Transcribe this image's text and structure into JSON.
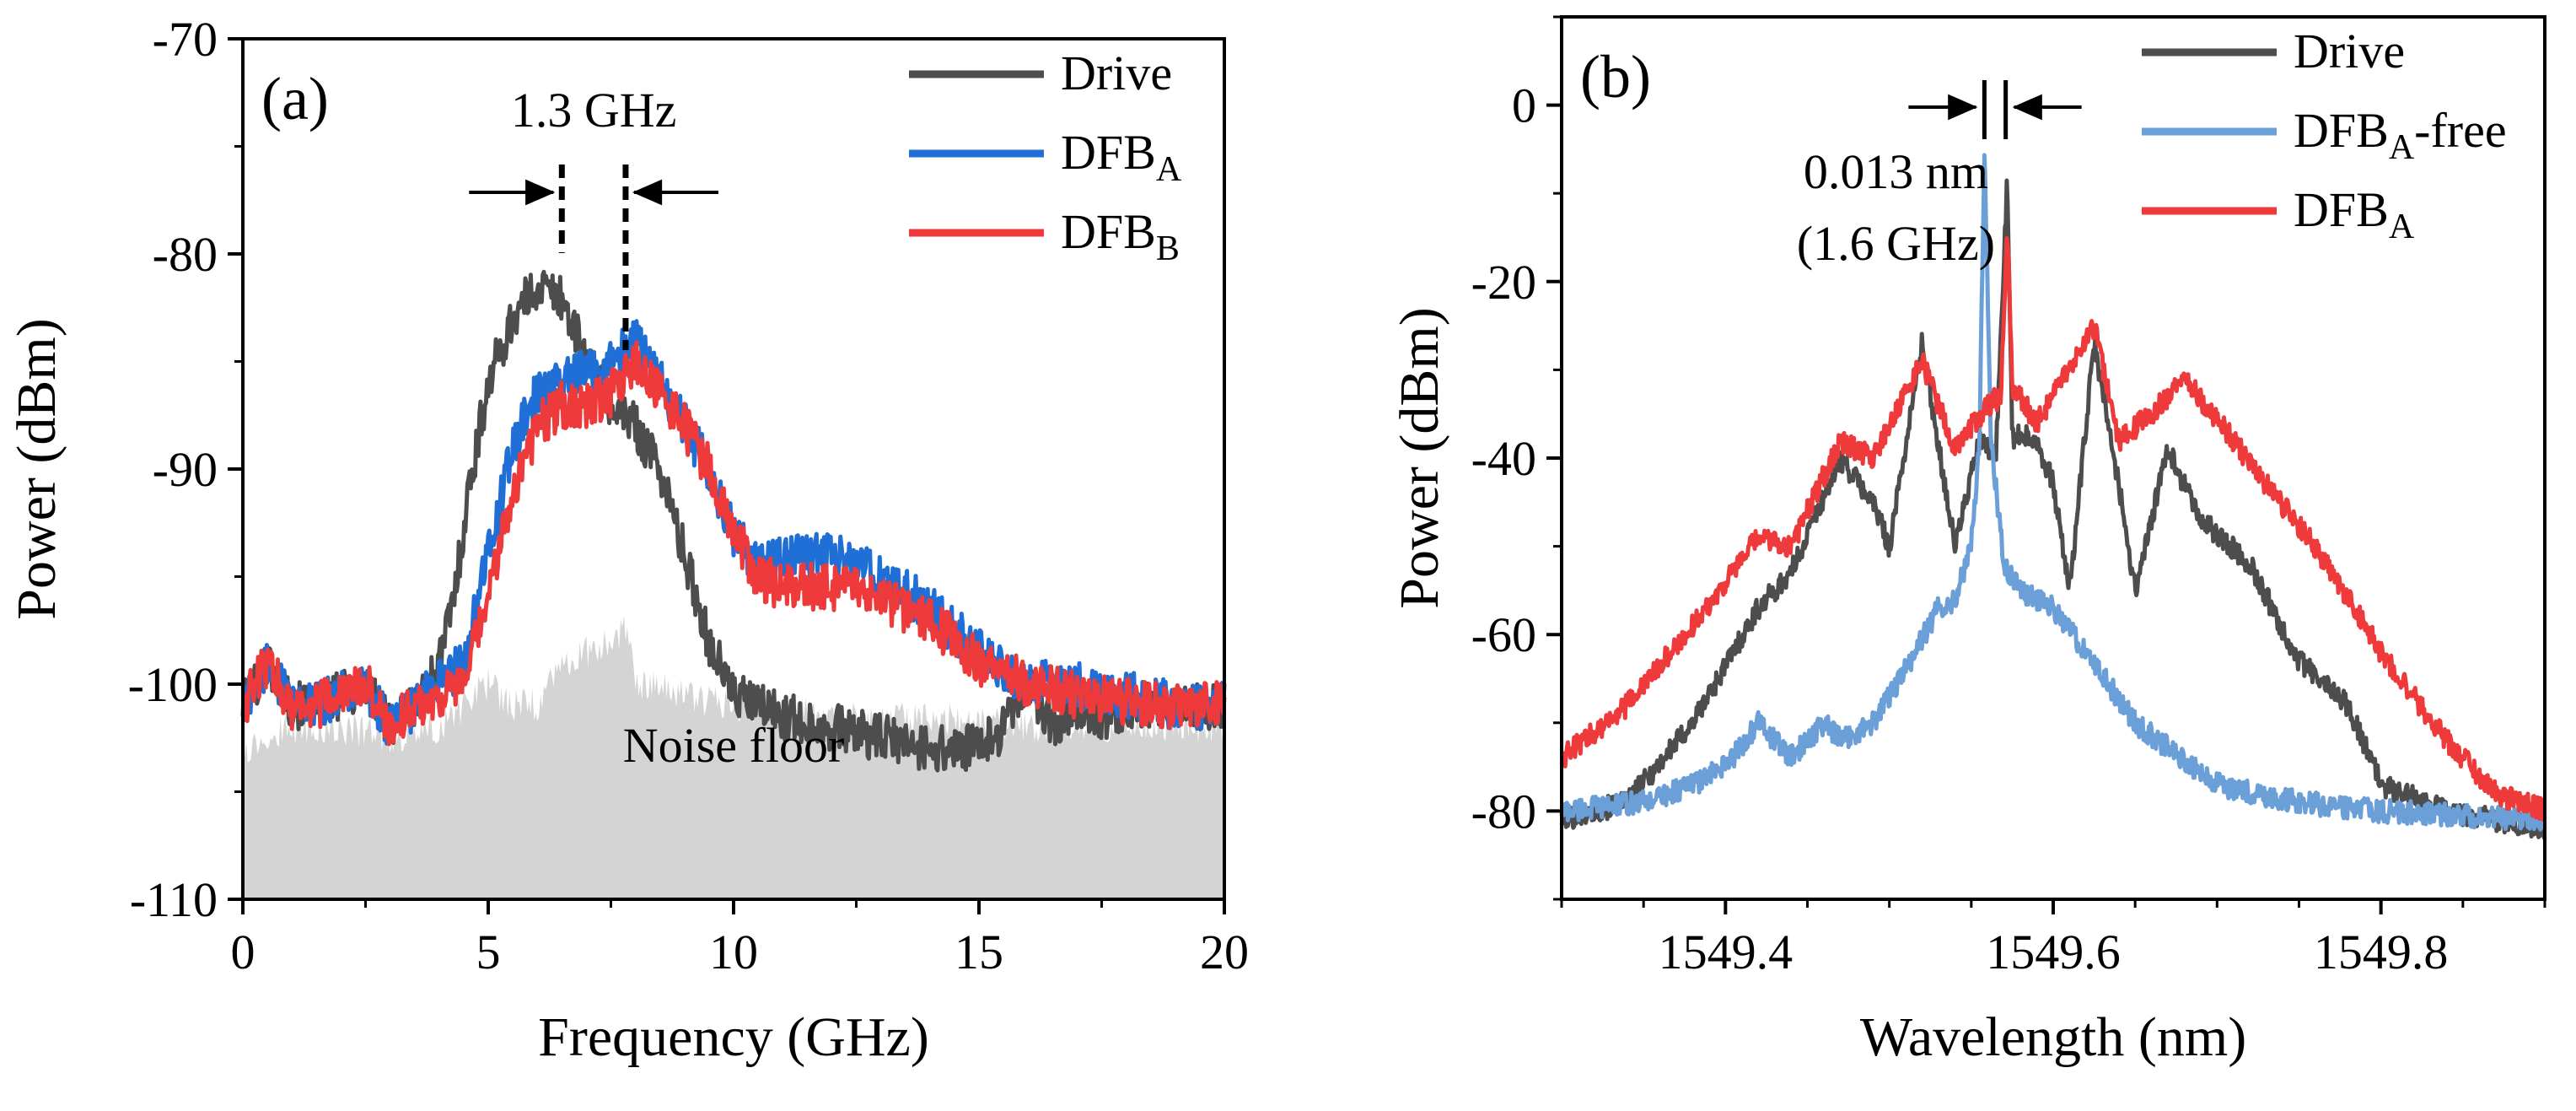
{
  "chart_data": [
    {
      "type": "line",
      "panel_label": "(a)",
      "xlabel": "Frequency (GHz)",
      "ylabel": "Power (dBm)",
      "xlim": [
        0,
        20
      ],
      "ylim": [
        -110,
        -70
      ],
      "xticks": [
        0,
        5,
        10,
        15,
        20
      ],
      "yticks": [
        -110,
        -100,
        -90,
        -80,
        -70
      ],
      "legend_position": "top-right",
      "series": [
        {
          "name": "Drive",
          "color": "#4d4d4d",
          "x": [
            0,
            0.5,
            1,
            1.5,
            2,
            2.5,
            3,
            3.5,
            4,
            4.3,
            4.6,
            5,
            5.5,
            6,
            6.5,
            7,
            7.5,
            8,
            8.5,
            9,
            9.5,
            10,
            11,
            12,
            13,
            14,
            15,
            15.5,
            16,
            16.5,
            17,
            17.5,
            18,
            19,
            20
          ],
          "y": [
            -101,
            -99,
            -101,
            -101,
            -100.5,
            -100,
            -102,
            -101,
            -99,
            -96,
            -91,
            -86,
            -83,
            -81.5,
            -82,
            -85,
            -87,
            -88,
            -90,
            -94,
            -98,
            -100.5,
            -101.5,
            -102,
            -102.5,
            -103,
            -103,
            -102,
            -100,
            -102,
            -101,
            -101.5,
            -101,
            -101,
            -101
          ]
        },
        {
          "name": "DFB_A",
          "color": "#1f6fd6",
          "x": [
            0,
            0.5,
            1,
            1.5,
            2,
            2.5,
            3,
            3.5,
            4,
            4.5,
            5,
            5.5,
            6,
            6.5,
            7,
            7.5,
            8,
            8.5,
            9,
            9.5,
            10,
            10.5,
            11,
            12,
            13,
            14,
            15,
            16,
            17,
            18,
            19,
            20
          ],
          "y": [
            -101,
            -99,
            -101,
            -101,
            -100.5,
            -100,
            -102,
            -101,
            -100,
            -99,
            -94,
            -89,
            -86.5,
            -86,
            -85.5,
            -85,
            -84,
            -86,
            -88,
            -90,
            -93,
            -94.5,
            -94,
            -94,
            -95,
            -96.5,
            -98.5,
            -100,
            -100,
            -100.5,
            -101,
            -101
          ]
        },
        {
          "name": "DFB_B",
          "color": "#ee3a3a",
          "x": [
            0,
            0.5,
            1,
            1.5,
            2,
            2.5,
            3,
            3.5,
            4,
            4.5,
            5,
            5.5,
            6,
            6.5,
            7,
            7.5,
            8,
            8.5,
            9,
            9.5,
            10,
            10.5,
            11,
            12,
            13,
            14,
            15,
            16,
            17,
            18,
            19,
            20
          ],
          "y": [
            -101,
            -99,
            -101,
            -101,
            -100.5,
            -100,
            -102,
            -101,
            -100.5,
            -100,
            -96,
            -91,
            -88,
            -87,
            -87,
            -86.5,
            -85,
            -86.5,
            -88,
            -90,
            -93,
            -95,
            -95.5,
            -95.5,
            -96,
            -97,
            -99,
            -100,
            -100.5,
            -100.8,
            -101,
            -101
          ]
        },
        {
          "name": "Noise floor",
          "color": "#d4d4d4",
          "x": [
            0,
            1,
            2,
            3,
            4,
            4.5,
            5,
            5.5,
            6,
            6.5,
            7,
            7.5,
            7.8,
            8,
            9,
            10,
            12,
            14,
            16,
            18,
            20
          ],
          "y": [
            -103,
            -102,
            -102,
            -102.5,
            -102,
            -101,
            -100,
            -101,
            -101,
            -99,
            -98.5,
            -98,
            -97.5,
            -100,
            -100.5,
            -101,
            -101.5,
            -101.5,
            -102,
            -102,
            -102
          ]
        }
      ],
      "annotations": [
        {
          "text": "1.3 GHz",
          "x1": 6.5,
          "x2": 7.8
        },
        {
          "text": "Noise floor"
        }
      ]
    },
    {
      "type": "line",
      "panel_label": "(b)",
      "xlabel": "Wavelength (nm)",
      "ylabel": "Power (dBm)",
      "xlim": [
        1549.3,
        1549.9
      ],
      "ylim": [
        -90,
        10
      ],
      "xticks": [
        1549.4,
        1549.6,
        1549.8
      ],
      "yticks": [
        -80,
        -60,
        -40,
        -20,
        0
      ],
      "legend_position": "top-right",
      "series": [
        {
          "name": "Drive",
          "color": "#4d4d4d",
          "x": [
            1549.3,
            1549.34,
            1549.38,
            1549.42,
            1549.44,
            1549.47,
            1549.49,
            1549.5,
            1549.52,
            1549.54,
            1549.555,
            1549.565,
            1549.572,
            1549.575,
            1549.58,
            1549.59,
            1549.6,
            1549.61,
            1549.625,
            1549.64,
            1549.65,
            1549.67,
            1549.69,
            1549.72,
            1549.75,
            1549.78,
            1549.8,
            1549.84,
            1549.9
          ],
          "y": [
            -81,
            -79,
            -70,
            -57,
            -53,
            -40,
            -45,
            -50,
            -27,
            -50,
            -38,
            -40,
            -8,
            -38,
            -37,
            -38,
            -43,
            -55,
            -27,
            -43,
            -55,
            -39,
            -47,
            -52,
            -63,
            -68,
            -77,
            -80,
            -82
          ]
        },
        {
          "name": "DFB_A-free",
          "color": "#6a9fd8",
          "x": [
            1549.3,
            1549.35,
            1549.38,
            1549.4,
            1549.42,
            1549.44,
            1549.46,
            1549.47,
            1549.49,
            1549.51,
            1549.53,
            1549.54,
            1549.55,
            1549.555,
            1549.558,
            1549.562,
            1549.57,
            1549.58,
            1549.6,
            1549.62,
            1549.65,
            1549.7,
            1549.75,
            1549.8,
            1549.9
          ],
          "y": [
            -80,
            -79,
            -77,
            -75,
            -70,
            -74,
            -70,
            -72,
            -70,
            -64,
            -57,
            -56,
            -50,
            -38,
            -5,
            -38,
            -52,
            -55,
            -57,
            -62,
            -70,
            -77,
            -79,
            -80,
            -81
          ]
        },
        {
          "name": "DFB_A",
          "color": "#ee3a3a",
          "x": [
            1549.3,
            1549.34,
            1549.38,
            1549.42,
            1549.44,
            1549.47,
            1549.49,
            1549.52,
            1549.54,
            1549.56,
            1549.568,
            1549.572,
            1549.575,
            1549.59,
            1549.61,
            1549.625,
            1549.64,
            1549.66,
            1549.68,
            1549.71,
            1549.73,
            1549.76,
            1549.8,
            1549.84,
            1549.87,
            1549.9
          ],
          "y": [
            -74,
            -68,
            -59,
            -49,
            -50,
            -38,
            -40,
            -29,
            -39,
            -34,
            -33,
            -14,
            -32,
            -36,
            -30,
            -25,
            -38,
            -35,
            -31,
            -38,
            -43,
            -50,
            -62,
            -72,
            -78,
            -80
          ]
        }
      ],
      "annotations": [
        {
          "text": "0.013 nm",
          "x1": 1549.558,
          "x2": 1549.571
        },
        {
          "text": "(1.6 GHz)"
        }
      ]
    }
  ]
}
